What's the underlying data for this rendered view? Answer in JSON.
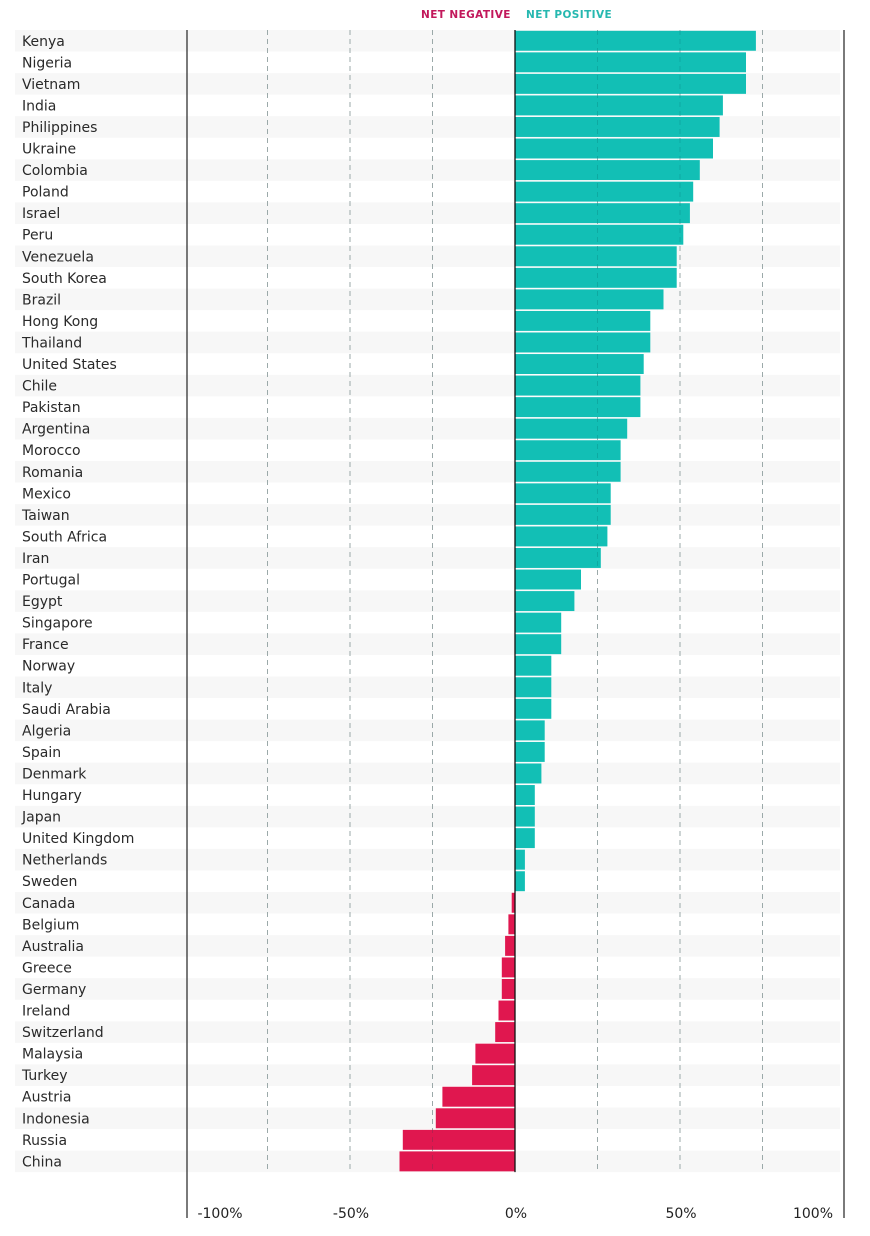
{
  "chart_data": {
    "type": "bar",
    "orientation": "horizontal",
    "title": "",
    "xlabel": "",
    "ylabel": "",
    "xlim": [
      -100,
      100
    ],
    "grid": true,
    "legend_position": "top-center",
    "legend": [
      {
        "label": "NET NEGATIVE",
        "color": "#e0174f"
      },
      {
        "label": "NET POSITIVE",
        "color": "#12bfb5"
      }
    ],
    "x_ticks": [
      {
        "value": -100,
        "label": "-100%"
      },
      {
        "value": -50,
        "label": "-50%"
      },
      {
        "value": 0,
        "label": "0%"
      },
      {
        "value": 50,
        "label": "50%"
      },
      {
        "value": 100,
        "label": "100%"
      }
    ],
    "categories": [
      "Kenya",
      "Nigeria",
      "Vietnam",
      "India",
      "Philippines",
      "Ukraine",
      "Colombia",
      "Poland",
      "Israel",
      "Peru",
      "Venezuela",
      "South Korea",
      "Brazil",
      "Hong Kong",
      "Thailand",
      "United States",
      "Chile",
      "Pakistan",
      "Argentina",
      "Morocco",
      "Romania",
      "Mexico",
      "Taiwan",
      "South Africa",
      "Iran",
      "Portugal",
      "Egypt",
      "Singapore",
      "France",
      "Norway",
      "Italy",
      "Saudi Arabia",
      "Algeria",
      "Spain",
      "Denmark",
      "Hungary",
      "Japan",
      "United Kingdom",
      "Netherlands",
      "Sweden",
      "Canada",
      "Belgium",
      "Australia",
      "Greece",
      "Germany",
      "Ireland",
      "Switzerland",
      "Malaysia",
      "Turkey",
      "Austria",
      "Indonesia",
      "Russia",
      "China"
    ],
    "values": [
      73,
      70,
      70,
      63,
      62,
      60,
      56,
      54,
      53,
      51,
      49,
      49,
      45,
      41,
      41,
      39,
      38,
      38,
      34,
      32,
      32,
      29,
      29,
      28,
      26,
      20,
      18,
      14,
      14,
      11,
      11,
      11,
      9,
      9,
      8,
      6,
      6,
      6,
      3,
      3,
      -1,
      -2,
      -3,
      -4,
      -4,
      -5,
      -6,
      -12,
      -13,
      -22,
      -24,
      -34,
      -35
    ],
    "colors": {
      "positive": "#12bfb5",
      "negative": "#e0174f"
    }
  }
}
